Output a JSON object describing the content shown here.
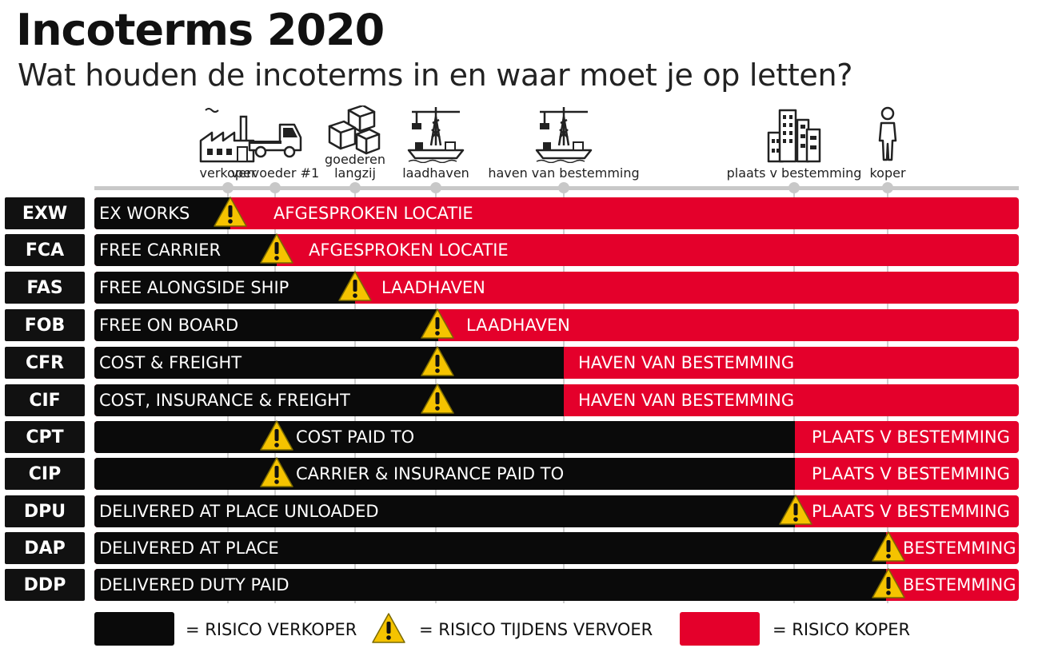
{
  "title": "Incoterms 2020",
  "subtitle": "Wat houden de incoterms in en waar moet je op letten?",
  "colors": {
    "seller": "#0a0a0a",
    "buyer": "#e4002b",
    "warning": "#f5c300",
    "timeline": "#c8c8c8"
  },
  "stages": [
    {
      "label": "verkoper",
      "icon": "factory-icon"
    },
    {
      "label": "vervoeder #1",
      "icon": "truck-icon"
    },
    {
      "label": "goederen\nlangzij",
      "icon": "boxes-icon"
    },
    {
      "label": "laadhaven",
      "icon": "port-crane-icon"
    },
    {
      "label": "haven van bestemming",
      "icon": "port-crane-icon"
    },
    {
      "label": "plaats v bestemming",
      "icon": "city-icon"
    },
    {
      "label": "koper",
      "icon": "person-icon"
    }
  ],
  "rows": [
    {
      "code": "EXW",
      "name": "EX WORKS",
      "location": "AFGESPROKEN LOCATIE",
      "risk_transfer_stage": "verkoper"
    },
    {
      "code": "FCA",
      "name": "FREE CARRIER",
      "location": "AFGESPROKEN LOCATIE",
      "risk_transfer_stage": "vervoeder #1"
    },
    {
      "code": "FAS",
      "name": "FREE ALONGSIDE SHIP",
      "location": "LAADHAVEN",
      "risk_transfer_stage": "goederen langzij"
    },
    {
      "code": "FOB",
      "name": "FREE ON BOARD",
      "location": "LAADHAVEN",
      "risk_transfer_stage": "laadhaven"
    },
    {
      "code": "CFR",
      "name": "COST & FREIGHT",
      "location": "HAVEN VAN BESTEMMING",
      "risk_transfer_stage": "laadhaven"
    },
    {
      "code": "CIF",
      "name": "COST, INSURANCE & FREIGHT",
      "location": "HAVEN VAN BESTEMMING",
      "risk_transfer_stage": "laadhaven"
    },
    {
      "code": "CPT",
      "name": "COST PAID TO",
      "location": "PLAATS V BESTEMMING",
      "risk_transfer_stage": "vervoeder #1"
    },
    {
      "code": "CIP",
      "name": "CARRIER & INSURANCE PAID TO",
      "location": "PLAATS V BESTEMMING",
      "risk_transfer_stage": "vervoeder #1"
    },
    {
      "code": "DPU",
      "name": "DELIVERED AT PLACE UNLOADED",
      "location": "PLAATS V BESTEMMING",
      "risk_transfer_stage": "plaats v bestemming"
    },
    {
      "code": "DAP",
      "name": "DELIVERED AT PLACE",
      "location": "BESTEMMING",
      "risk_transfer_stage": "koper"
    },
    {
      "code": "DDP",
      "name": "DELIVERED DUTY PAID",
      "location": "BESTEMMING",
      "risk_transfer_stage": "koper"
    }
  ],
  "legend": {
    "seller": "= RISICO VERKOPER",
    "transport": "= RISICO TIJDENS VERVOER",
    "buyer": "= RISICO KOPER"
  }
}
